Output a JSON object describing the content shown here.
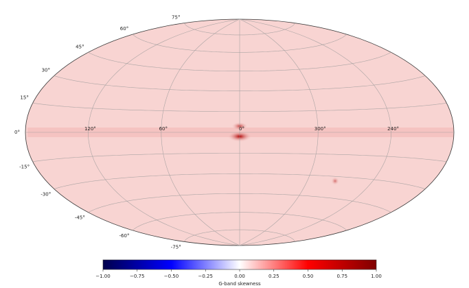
{
  "chart_data": {
    "type": "skymap",
    "projection": "hammer",
    "color": "#f8d4d2",
    "lat_ticks": [
      {
        "value": 75,
        "label": "75°"
      },
      {
        "value": 60,
        "label": "60°"
      },
      {
        "value": 45,
        "label": "45°"
      },
      {
        "value": 30,
        "label": "30°"
      },
      {
        "value": 15,
        "label": "15°"
      },
      {
        "value": 0,
        "label": "0°"
      },
      {
        "value": -15,
        "label": "-15°"
      },
      {
        "value": -30,
        "label": "-30°"
      },
      {
        "value": -45,
        "label": "-45°"
      },
      {
        "value": -60,
        "label": "-60°"
      },
      {
        "value": -75,
        "label": "-75°"
      }
    ],
    "lon_ticks": [
      {
        "value": 120,
        "label": "120°"
      },
      {
        "value": 60,
        "label": "60°"
      },
      {
        "value": 0,
        "label": "0°"
      },
      {
        "value": 300,
        "label": "300°"
      },
      {
        "value": 240,
        "label": "240°"
      }
    ],
    "colorbar": {
      "label": "G-band skewness",
      "clim": [
        -1,
        1
      ],
      "colors": [
        "#00004c",
        "#0000ff",
        "#ffffff",
        "#ff0000",
        "#7f0000"
      ],
      "ticks": [
        {
          "value": -1,
          "label": "−1.00"
        },
        {
          "value": -0.75,
          "label": "−0.75"
        },
        {
          "value": -0.5,
          "label": "−0.50"
        },
        {
          "value": -0.25,
          "label": "−0.25"
        },
        {
          "value": 0,
          "label": "0.00"
        },
        {
          "value": 0.25,
          "label": "0.25"
        },
        {
          "value": 0.5,
          "label": "0.50"
        },
        {
          "value": 0.75,
          "label": "0.75"
        },
        {
          "value": 1,
          "label": "1.00"
        }
      ]
    }
  }
}
